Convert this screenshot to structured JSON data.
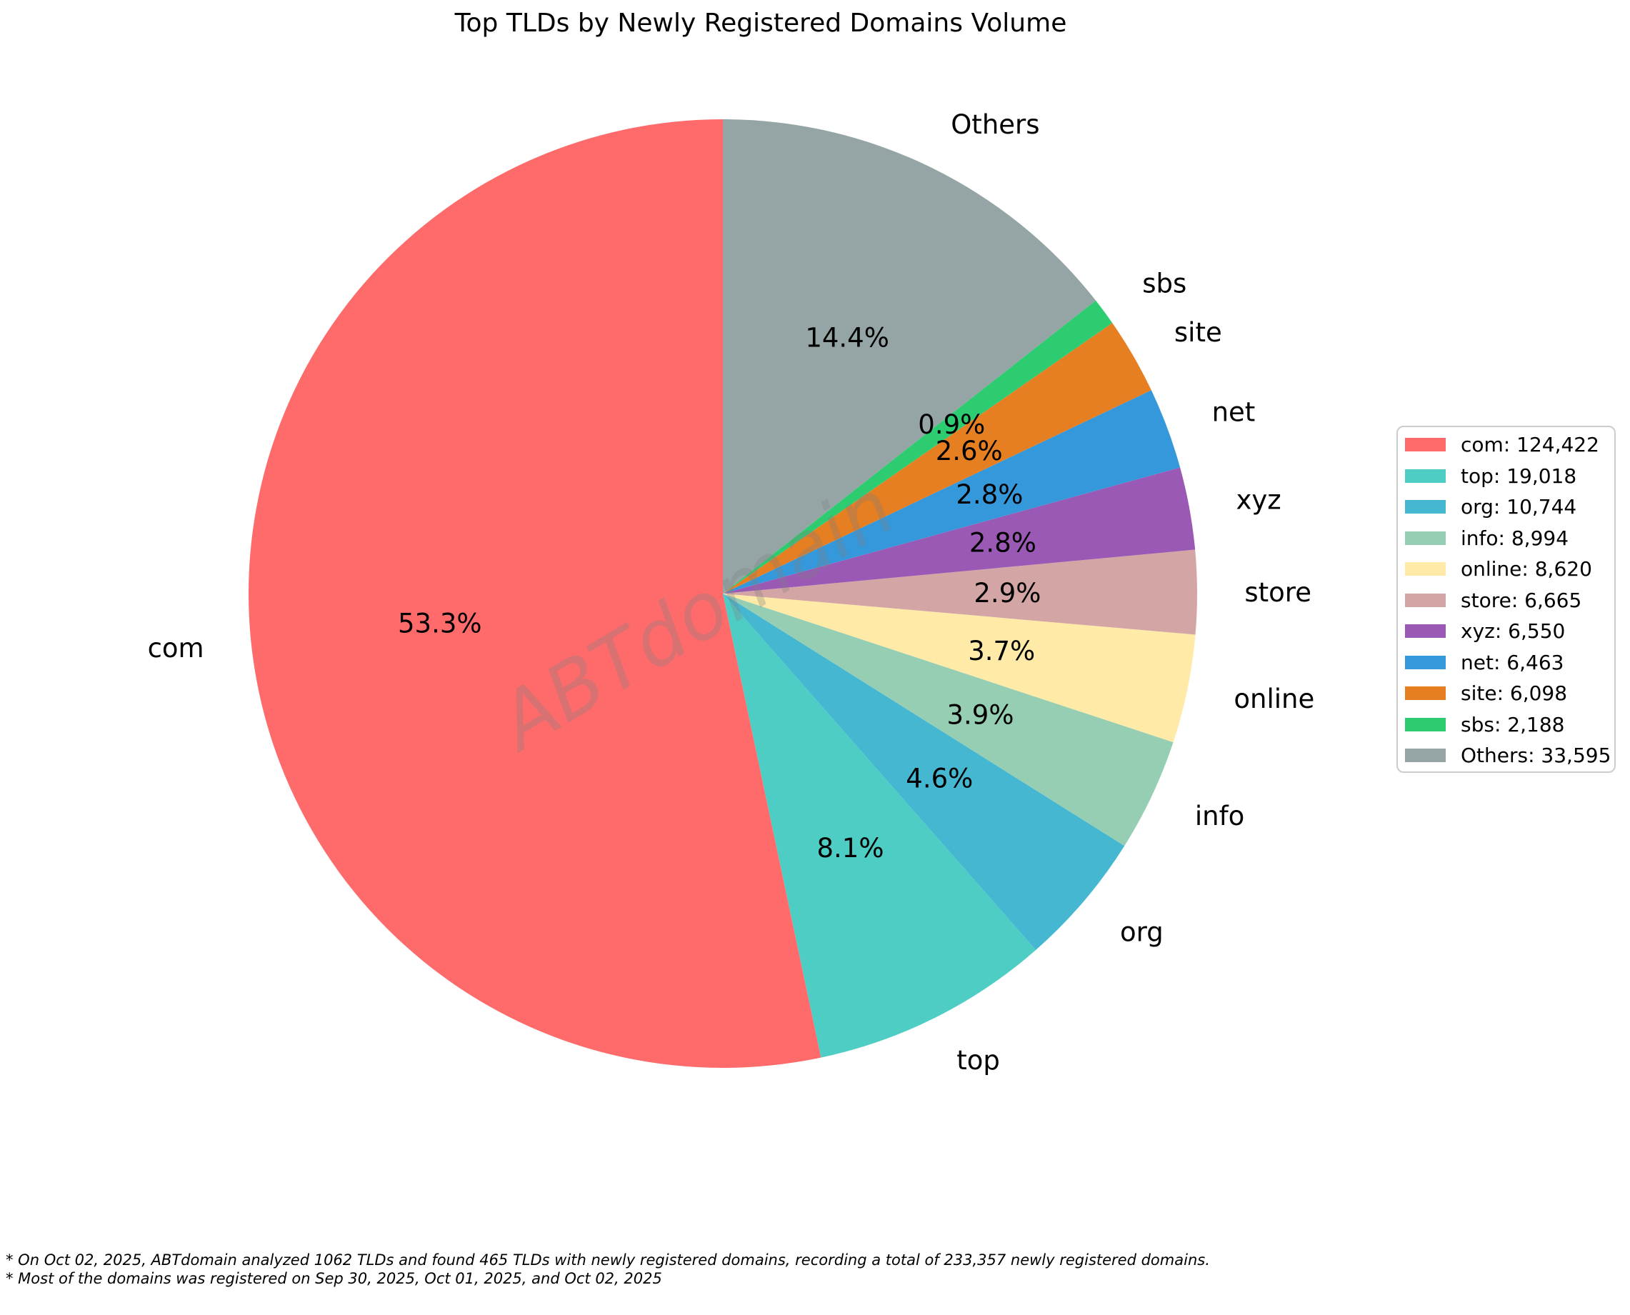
{
  "title": "Top TLDs by Newly Registered Domains Volume",
  "watermark": "ABTdomain",
  "footnotes": {
    "line1": "* On Oct 02, 2025, ABTdomain analyzed 1062 TLDs and found 465 TLDs with newly registered domains, recording a total of 233,357 newly registered domains.",
    "line2": "* Most of the domains was registered on Sep 30, 2025, Oct 01, 2025, and Oct 02, 2025"
  },
  "chart_data": {
    "type": "pie",
    "title": "Top TLDs by Newly Registered Domains Volume",
    "total": 233357,
    "start_angle": 90,
    "direction": "counterclockwise",
    "legend_position": "right",
    "label_distance": 1.1,
    "pct_distance": 0.6,
    "slices": [
      {
        "label": "com",
        "value": 124422,
        "value_formatted": "124,422",
        "pct_label": "53.3%",
        "color": "#ff6b6b"
      },
      {
        "label": "top",
        "value": 19018,
        "value_formatted": "19,018",
        "pct_label": "8.1%",
        "color": "#4ecdc4"
      },
      {
        "label": "org",
        "value": 10744,
        "value_formatted": "10,744",
        "pct_label": "4.6%",
        "color": "#45b7d1"
      },
      {
        "label": "info",
        "value": 8994,
        "value_formatted": "8,994",
        "pct_label": "3.9%",
        "color": "#96ceb4"
      },
      {
        "label": "online",
        "value": 8620,
        "value_formatted": "8,620",
        "pct_label": "3.7%",
        "color": "#ffeaa7"
      },
      {
        "label": "store",
        "value": 6665,
        "value_formatted": "6,665",
        "pct_label": "2.9%",
        "color": "#d4a5a5"
      },
      {
        "label": "xyz",
        "value": 6550,
        "value_formatted": "6,550",
        "pct_label": "2.8%",
        "color": "#9b59b6"
      },
      {
        "label": "net",
        "value": 6463,
        "value_formatted": "6,463",
        "pct_label": "2.8%",
        "color": "#3498db"
      },
      {
        "label": "site",
        "value": 6098,
        "value_formatted": "6,098",
        "pct_label": "2.6%",
        "color": "#e67e22"
      },
      {
        "label": "sbs",
        "value": 2188,
        "value_formatted": "2,188",
        "pct_label": "0.9%",
        "color": "#2ecc71"
      },
      {
        "label": "Others",
        "value": 33595,
        "value_formatted": "33,595",
        "pct_label": "14.4%",
        "color": "#95a5a6"
      }
    ]
  }
}
